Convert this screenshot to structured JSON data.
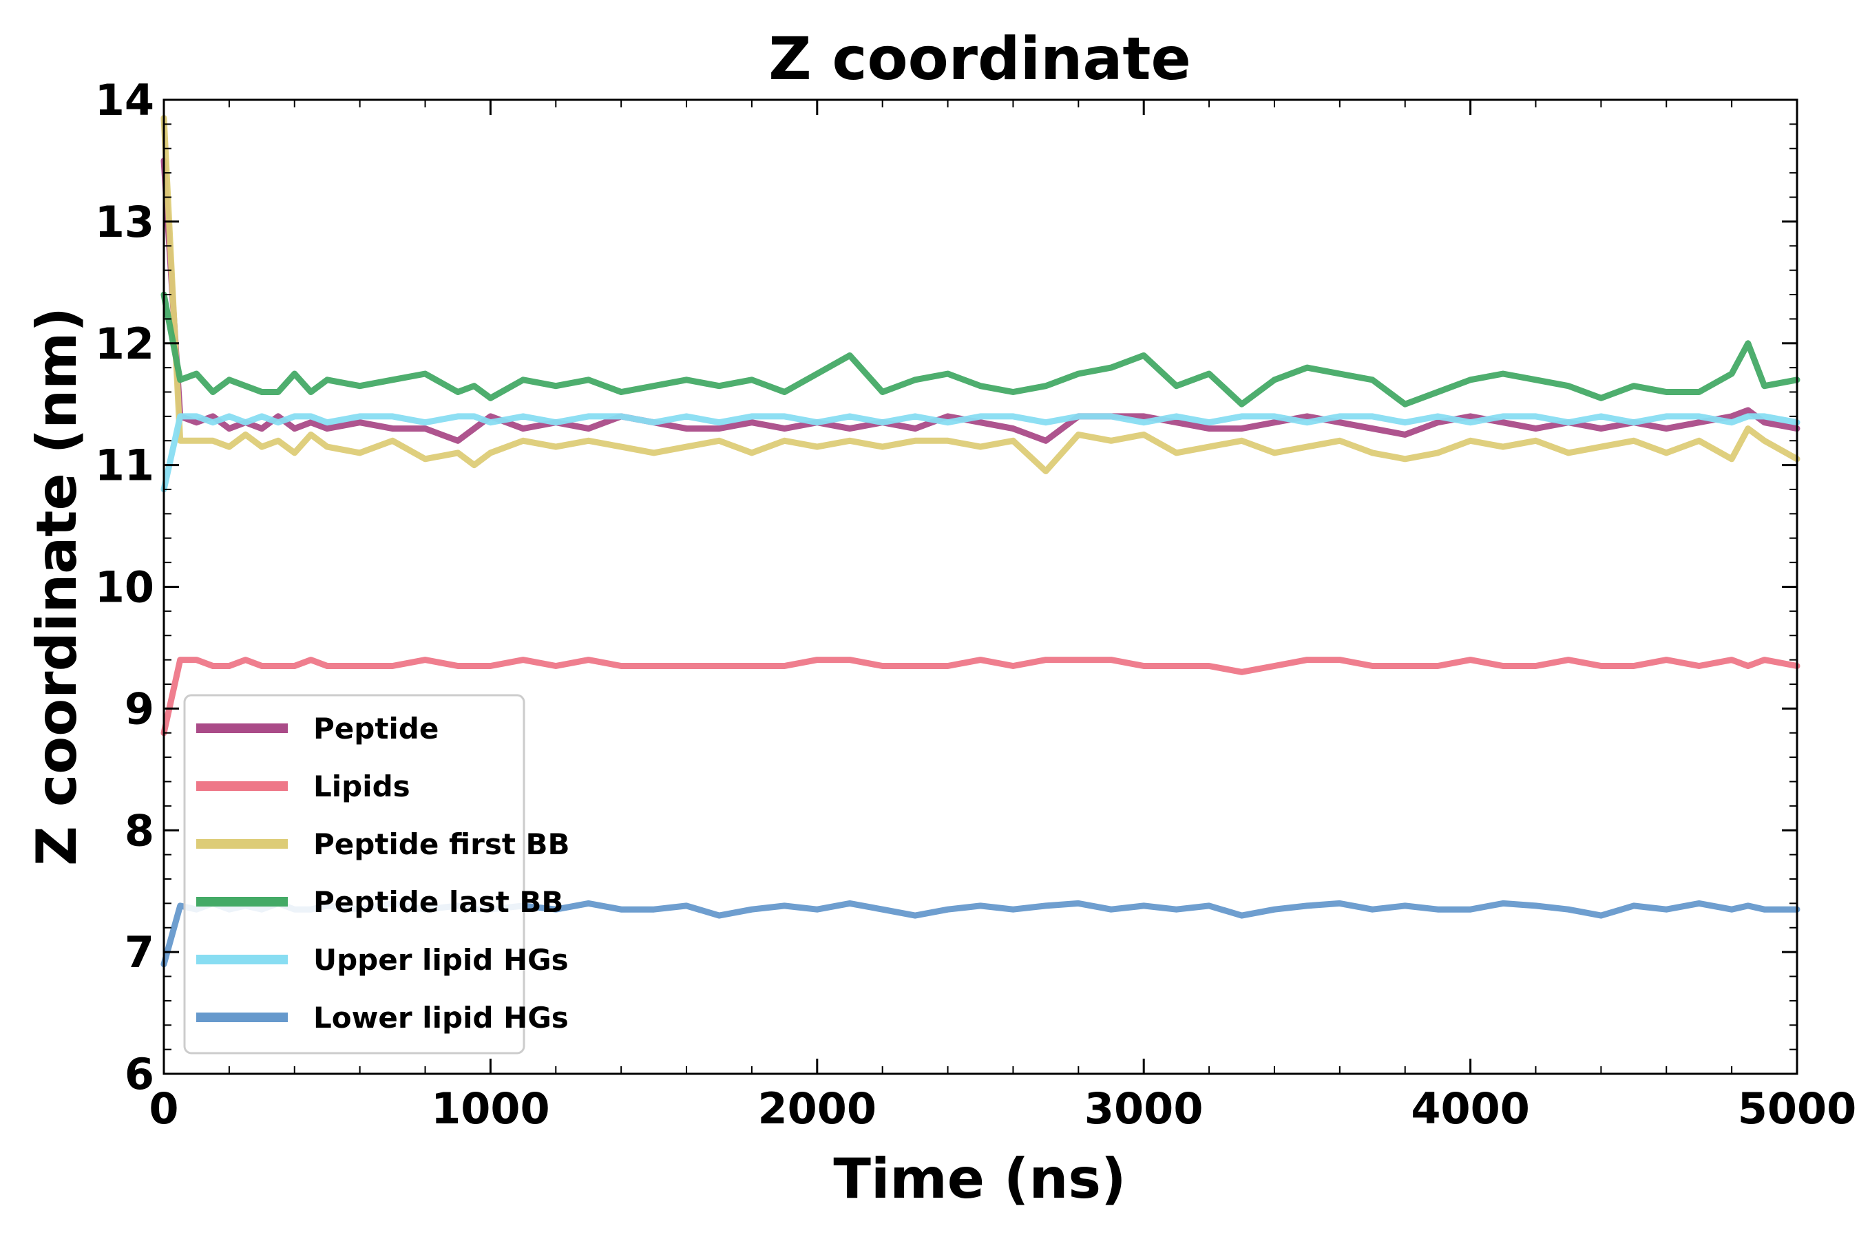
{
  "chart_data": {
    "type": "line",
    "title": "Z coordinate",
    "xlabel": "Time (ns)",
    "ylabel": "Z coordinate (nm)",
    "xlim": [
      0,
      5000
    ],
    "ylim": [
      6,
      14
    ],
    "xticks": [
      "0",
      "1000",
      "2000",
      "3000",
      "4000",
      "5000"
    ],
    "yticks": [
      "6",
      "7",
      "8",
      "9",
      "10",
      "11",
      "12",
      "13",
      "14"
    ],
    "grid": false,
    "legend_position": "lower-left",
    "x": [
      0,
      50,
      100,
      150,
      200,
      250,
      300,
      350,
      400,
      450,
      500,
      600,
      700,
      800,
      900,
      950,
      1000,
      1100,
      1200,
      1300,
      1400,
      1500,
      1600,
      1700,
      1800,
      1900,
      2000,
      2100,
      2200,
      2300,
      2400,
      2500,
      2600,
      2700,
      2800,
      2900,
      3000,
      3100,
      3200,
      3300,
      3400,
      3500,
      3600,
      3700,
      3800,
      3900,
      4000,
      4100,
      4200,
      4300,
      4400,
      4500,
      4600,
      4700,
      4800,
      4850,
      4900,
      5000
    ],
    "series": [
      {
        "name": "Peptide",
        "color": "#aa4b88",
        "values": [
          13.5,
          11.4,
          11.35,
          11.4,
          11.3,
          11.35,
          11.3,
          11.4,
          11.3,
          11.35,
          11.3,
          11.35,
          11.3,
          11.3,
          11.2,
          11.3,
          11.4,
          11.3,
          11.35,
          11.3,
          11.4,
          11.35,
          11.3,
          11.3,
          11.35,
          11.3,
          11.35,
          11.3,
          11.35,
          11.3,
          11.4,
          11.35,
          11.3,
          11.2,
          11.4,
          11.4,
          11.4,
          11.35,
          11.3,
          11.3,
          11.35,
          11.4,
          11.35,
          11.3,
          11.25,
          11.35,
          11.4,
          11.35,
          11.3,
          11.35,
          11.3,
          11.35,
          11.3,
          11.35,
          11.4,
          11.45,
          11.35,
          11.3
        ]
      },
      {
        "name": "Lipids",
        "color": "#ee7788",
        "values": [
          8.8,
          9.4,
          9.4,
          9.35,
          9.35,
          9.4,
          9.35,
          9.35,
          9.35,
          9.4,
          9.35,
          9.35,
          9.35,
          9.4,
          9.35,
          9.35,
          9.35,
          9.4,
          9.35,
          9.4,
          9.35,
          9.35,
          9.35,
          9.35,
          9.35,
          9.35,
          9.4,
          9.4,
          9.35,
          9.35,
          9.35,
          9.4,
          9.35,
          9.4,
          9.4,
          9.4,
          9.35,
          9.35,
          9.35,
          9.3,
          9.35,
          9.4,
          9.4,
          9.35,
          9.35,
          9.35,
          9.4,
          9.35,
          9.35,
          9.4,
          9.35,
          9.35,
          9.4,
          9.35,
          9.4,
          9.35,
          9.4,
          9.35
        ]
      },
      {
        "name": "Peptide first BB",
        "color": "#ddcc77",
        "values": [
          13.85,
          11.2,
          11.2,
          11.2,
          11.15,
          11.25,
          11.15,
          11.2,
          11.1,
          11.25,
          11.15,
          11.1,
          11.2,
          11.05,
          11.1,
          11.0,
          11.1,
          11.2,
          11.15,
          11.2,
          11.15,
          11.1,
          11.15,
          11.2,
          11.1,
          11.2,
          11.15,
          11.2,
          11.15,
          11.2,
          11.2,
          11.15,
          11.2,
          10.95,
          11.25,
          11.2,
          11.25,
          11.1,
          11.15,
          11.2,
          11.1,
          11.15,
          11.2,
          11.1,
          11.05,
          11.1,
          11.2,
          11.15,
          11.2,
          11.1,
          11.15,
          11.2,
          11.1,
          11.2,
          11.05,
          11.3,
          11.2,
          11.05
        ]
      },
      {
        "name": "Peptide last BB",
        "color": "#44aa66",
        "values": [
          12.4,
          11.7,
          11.75,
          11.6,
          11.7,
          11.65,
          11.6,
          11.6,
          11.75,
          11.6,
          11.7,
          11.65,
          11.7,
          11.75,
          11.6,
          11.65,
          11.55,
          11.7,
          11.65,
          11.7,
          11.6,
          11.65,
          11.7,
          11.65,
          11.7,
          11.6,
          11.75,
          11.9,
          11.6,
          11.7,
          11.75,
          11.65,
          11.6,
          11.65,
          11.75,
          11.8,
          11.9,
          11.65,
          11.75,
          11.5,
          11.7,
          11.8,
          11.75,
          11.7,
          11.5,
          11.6,
          11.7,
          11.75,
          11.7,
          11.65,
          11.55,
          11.65,
          11.6,
          11.6,
          11.75,
          12.0,
          11.65,
          11.7
        ]
      },
      {
        "name": "Upper lipid HGs",
        "color": "#88ddf2",
        "values": [
          10.8,
          11.4,
          11.4,
          11.35,
          11.4,
          11.35,
          11.4,
          11.35,
          11.4,
          11.4,
          11.35,
          11.4,
          11.4,
          11.35,
          11.4,
          11.4,
          11.35,
          11.4,
          11.35,
          11.4,
          11.4,
          11.35,
          11.4,
          11.35,
          11.4,
          11.4,
          11.35,
          11.4,
          11.35,
          11.4,
          11.35,
          11.4,
          11.4,
          11.35,
          11.4,
          11.4,
          11.35,
          11.4,
          11.35,
          11.4,
          11.4,
          11.35,
          11.4,
          11.4,
          11.35,
          11.4,
          11.35,
          11.4,
          11.4,
          11.35,
          11.4,
          11.35,
          11.4,
          11.4,
          11.35,
          11.4,
          11.4,
          11.35
        ]
      },
      {
        "name": "Lower lipid HGs",
        "color": "#6699cc",
        "values": [
          6.9,
          7.38,
          7.35,
          7.4,
          7.35,
          7.38,
          7.35,
          7.4,
          7.35,
          7.35,
          7.38,
          7.35,
          7.4,
          7.35,
          7.38,
          7.35,
          7.35,
          7.38,
          7.35,
          7.4,
          7.35,
          7.35,
          7.38,
          7.3,
          7.35,
          7.38,
          7.35,
          7.4,
          7.35,
          7.3,
          7.35,
          7.38,
          7.35,
          7.38,
          7.4,
          7.35,
          7.38,
          7.35,
          7.38,
          7.3,
          7.35,
          7.38,
          7.4,
          7.35,
          7.38,
          7.35,
          7.35,
          7.4,
          7.38,
          7.35,
          7.3,
          7.38,
          7.35,
          7.4,
          7.35,
          7.38,
          7.35,
          7.35
        ]
      }
    ]
  }
}
